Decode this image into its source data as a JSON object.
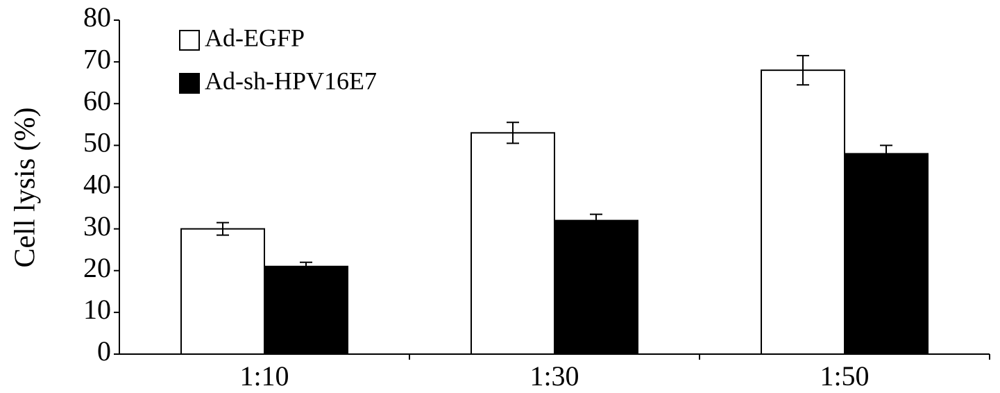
{
  "chart_data": {
    "type": "bar",
    "ylabel": "Cell lysis (%)",
    "categories": [
      "1:10",
      "1:30",
      "1:50"
    ],
    "series": [
      {
        "name": "Ad-EGFP",
        "color": "#ffffff",
        "values": [
          30,
          53,
          68
        ],
        "errors": [
          1.5,
          2.5,
          3.5
        ]
      },
      {
        "name": "Ad-sh-HPV16E7",
        "color": "#000000",
        "values": [
          21,
          32,
          48
        ],
        "errors": [
          1,
          1.5,
          2
        ]
      }
    ],
    "ylim": [
      0,
      80
    ],
    "yticks": [
      0,
      10,
      20,
      30,
      40,
      50,
      60,
      70,
      80
    ],
    "legend": "upper left"
  }
}
